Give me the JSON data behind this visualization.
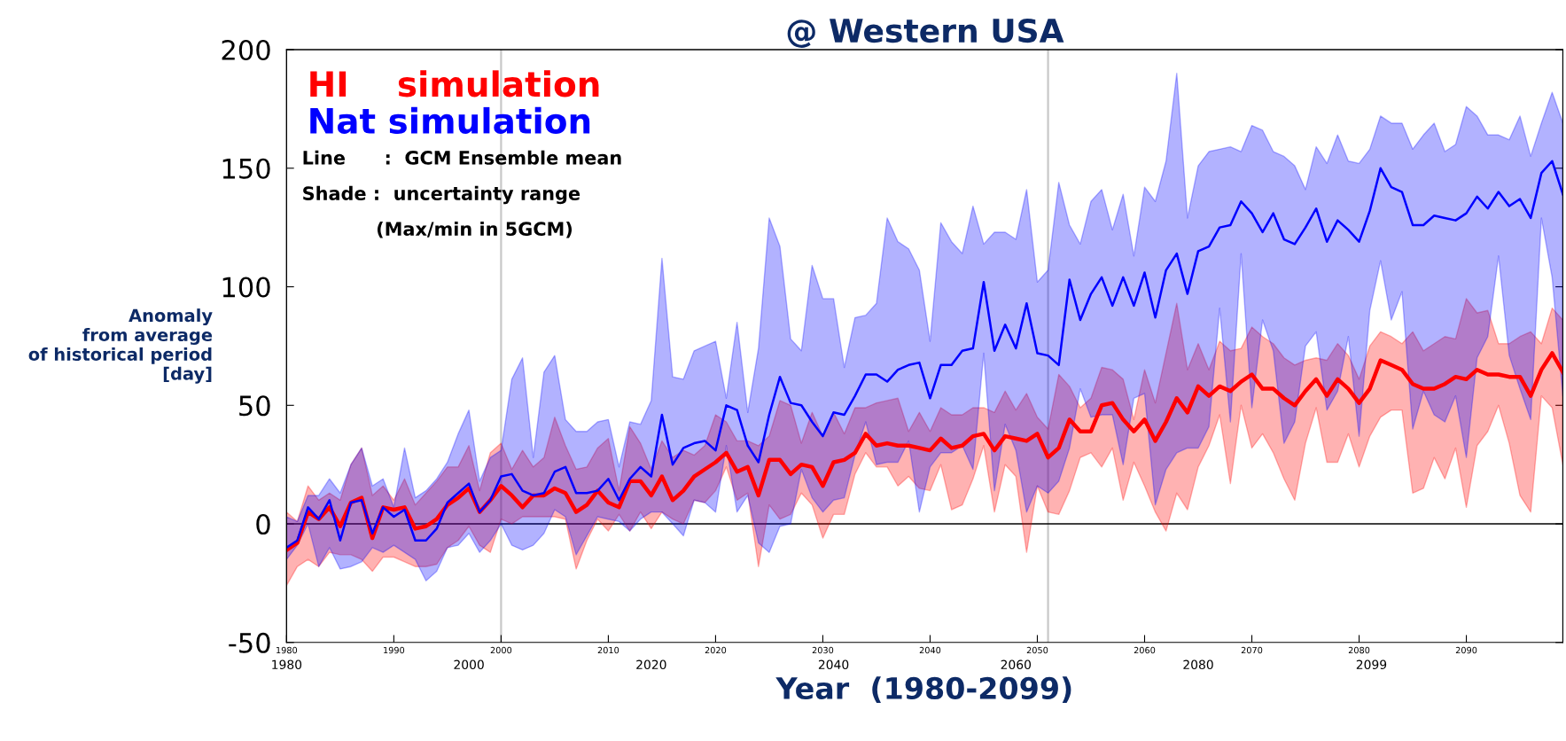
{
  "chart_data": {
    "type": "line",
    "title": "@ Western USA",
    "xlabel": "Year  (1980-2099)",
    "ylabel": "Anomaly\nfrom average\nof historical period\n[day]",
    "annotations": [
      "Line      :  GCM Ensemble mean",
      "Shade :  uncertainty range",
      "(Max/min in 5GCM)"
    ],
    "x": [
      1980,
      1981,
      1982,
      1983,
      1984,
      1985,
      1986,
      1987,
      1988,
      1989,
      1990,
      1991,
      1992,
      1993,
      1994,
      1995,
      1996,
      1997,
      1998,
      1999,
      2000,
      2001,
      2002,
      2003,
      2004,
      2005,
      2006,
      2007,
      2008,
      2009,
      2010,
      2011,
      2012,
      2013,
      2014,
      2015,
      2016,
      2017,
      2018,
      2019,
      2020,
      2021,
      2022,
      2023,
      2024,
      2025,
      2026,
      2027,
      2028,
      2029,
      2030,
      2031,
      2032,
      2033,
      2034,
      2035,
      2036,
      2037,
      2038,
      2039,
      2040,
      2041,
      2042,
      2043,
      2044,
      2045,
      2046,
      2047,
      2048,
      2049,
      2050,
      2051,
      2052,
      2053,
      2054,
      2055,
      2056,
      2057,
      2058,
      2059,
      2060,
      2061,
      2062,
      2063,
      2064,
      2065,
      2066,
      2067,
      2068,
      2069,
      2070,
      2071,
      2072,
      2073,
      2074,
      2075,
      2076,
      2077,
      2078,
      2079,
      2080,
      2081,
      2082,
      2083,
      2084,
      2085,
      2086,
      2087,
      2088,
      2089,
      2090,
      2091,
      2092,
      2093,
      2094,
      2095,
      2096,
      2097,
      2098,
      2099
    ],
    "series": [
      {
        "name": "Nat simulation",
        "color": "#0000ff",
        "values": [
          -10,
          -7,
          7,
          2,
          10,
          -7,
          9,
          10,
          -4,
          7,
          3,
          6,
          -7,
          -7,
          -2,
          9,
          13,
          17,
          5,
          10,
          20,
          21,
          14,
          12,
          13,
          22,
          24,
          13,
          13,
          14,
          19,
          10,
          19,
          24,
          20,
          46,
          25,
          32,
          34,
          35,
          31,
          50,
          48,
          33,
          26,
          46,
          62,
          51,
          50,
          43,
          37,
          47,
          46,
          54,
          63,
          63,
          60,
          65,
          67,
          68,
          53,
          67,
          67,
          73,
          74,
          102,
          73,
          84,
          74,
          93,
          72,
          71,
          67,
          103,
          86,
          97,
          104,
          92,
          104,
          92,
          106,
          87,
          107,
          114,
          97,
          115,
          117,
          125,
          126,
          136,
          131,
          123,
          131,
          120,
          118,
          125,
          133,
          119,
          128,
          124,
          119,
          132,
          150,
          142,
          140,
          126,
          126,
          130,
          129,
          128,
          131,
          138,
          133,
          140,
          134,
          137,
          129,
          148,
          153,
          139
        ],
        "upper": [
          3,
          1,
          12,
          12,
          19,
          13,
          25,
          32,
          16,
          19,
          7,
          32,
          11,
          14,
          19,
          26,
          38,
          48,
          18,
          28,
          31,
          61,
          70,
          28,
          64,
          71,
          44,
          39,
          39,
          43,
          44,
          24,
          43,
          42,
          52,
          112,
          62,
          61,
          73,
          75,
          77,
          53,
          85,
          47,
          74,
          129,
          117,
          78,
          73,
          109,
          95,
          95,
          66,
          87,
          88,
          93,
          129,
          119,
          116,
          107,
          77,
          127,
          119,
          114,
          134,
          118,
          123,
          123,
          120,
          141,
          102,
          107,
          144,
          126,
          118,
          136,
          141,
          124,
          139,
          113,
          142,
          136,
          153,
          190,
          129,
          151,
          157,
          158,
          159,
          157,
          168,
          166,
          157,
          155,
          151,
          141,
          159,
          152,
          164,
          153,
          152,
          158,
          172,
          169,
          169,
          158,
          164,
          169,
          157,
          160,
          176,
          172,
          164,
          164,
          162,
          172,
          155,
          169,
          182,
          169
        ],
        "lower": [
          -15,
          -9,
          0,
          -18,
          -10,
          -19,
          -18,
          -16,
          -10,
          -12,
          -9,
          -12,
          -15,
          -24,
          -20,
          -10,
          -9,
          -4,
          -12,
          -7,
          0,
          -9,
          -11,
          -9,
          -4,
          6,
          3,
          -13,
          -5,
          3,
          2,
          1,
          -3,
          2,
          5,
          5,
          0,
          -5,
          10,
          9,
          5,
          33,
          5,
          12,
          -8,
          -12,
          -1,
          0,
          23,
          11,
          5,
          10,
          11,
          29,
          43,
          25,
          26,
          26,
          35,
          5,
          24,
          30,
          30,
          33,
          23,
          72,
          14,
          42,
          31,
          5,
          16,
          13,
          18,
          32,
          57,
          45,
          46,
          46,
          25,
          53,
          55,
          8,
          23,
          30,
          32,
          32,
          41,
          91,
          43,
          114,
          49,
          86,
          73,
          34,
          43,
          75,
          81,
          48,
          56,
          79,
          37,
          90,
          111,
          86,
          98,
          40,
          56,
          46,
          43,
          54,
          28,
          70,
          79,
          113,
          71,
          57,
          44,
          129,
          104,
          54
        ]
      },
      {
        "name": "HI    simulation",
        "color": "#ff0000",
        "values": [
          -11,
          -8,
          5,
          2,
          7,
          -1,
          9,
          11,
          -6,
          7,
          6,
          7,
          -2,
          -1,
          2,
          8,
          11,
          15,
          5,
          10,
          16,
          12,
          7,
          12,
          12,
          15,
          13,
          5,
          8,
          14,
          9,
          7,
          18,
          18,
          12,
          20,
          10,
          14,
          20,
          23,
          26,
          30,
          22,
          24,
          12,
          27,
          27,
          21,
          25,
          24,
          16,
          26,
          27,
          30,
          38,
          33,
          34,
          33,
          33,
          32,
          31,
          36,
          32,
          33,
          37,
          38,
          31,
          37,
          36,
          35,
          38,
          28,
          32,
          44,
          39,
          39,
          50,
          51,
          44,
          39,
          44,
          35,
          43,
          53,
          47,
          58,
          54,
          58,
          56,
          60,
          63,
          57,
          57,
          53,
          50,
          56,
          61,
          54,
          61,
          57,
          51,
          57,
          69,
          67,
          65,
          59,
          57,
          57,
          59,
          62,
          61,
          65,
          63,
          63,
          62,
          62,
          54,
          65,
          72,
          64
        ],
        "upper": [
          5,
          1,
          16,
          10,
          13,
          10,
          25,
          32,
          12,
          16,
          10,
          19,
          8,
          13,
          18,
          24,
          24,
          33,
          14,
          30,
          34,
          23,
          31,
          24,
          28,
          45,
          33,
          23,
          24,
          32,
          36,
          14,
          41,
          34,
          23,
          35,
          28,
          31,
          29,
          33,
          46,
          43,
          35,
          35,
          33,
          37,
          52,
          50,
          34,
          47,
          37,
          47,
          38,
          49,
          49,
          51,
          52,
          53,
          39,
          47,
          39,
          49,
          46,
          46,
          49,
          49,
          47,
          56,
          48,
          55,
          45,
          40,
          63,
          58,
          49,
          53,
          66,
          65,
          61,
          44,
          65,
          51,
          72,
          93,
          65,
          76,
          65,
          77,
          73,
          74,
          83,
          79,
          76,
          70,
          67,
          69,
          70,
          69,
          76,
          71,
          61,
          75,
          81,
          79,
          76,
          81,
          73,
          76,
          79,
          78,
          95,
          89,
          90,
          76,
          76,
          79,
          81,
          76,
          91,
          86
        ],
        "lower": [
          -26,
          -18,
          -15,
          -18,
          -12,
          -13,
          -13,
          -15,
          -20,
          -14,
          -14,
          -16,
          -18,
          -18,
          -17,
          -10,
          -7,
          -1,
          -9,
          -12,
          2,
          0,
          3,
          3,
          3,
          3,
          2,
          -19,
          -7,
          2,
          -3,
          4,
          -3,
          5,
          -2,
          5,
          2,
          0,
          10,
          9,
          14,
          24,
          10,
          13,
          -18,
          8,
          2,
          4,
          13,
          8,
          -6,
          4,
          4,
          21,
          30,
          24,
          24,
          16,
          20,
          15,
          14,
          25,
          6,
          8,
          19,
          33,
          5,
          25,
          20,
          -12,
          16,
          5,
          4,
          14,
          28,
          30,
          24,
          32,
          10,
          26,
          16,
          5,
          -3,
          13,
          6,
          24,
          33,
          46,
          17,
          50,
          32,
          38,
          30,
          19,
          10,
          34,
          49,
          26,
          26,
          38,
          24,
          37,
          45,
          48,
          48,
          13,
          15,
          28,
          19,
          32,
          7,
          33,
          39,
          50,
          34,
          12,
          5,
          54,
          49,
          25
        ]
      }
    ],
    "xlim": [
      1980,
      2099
    ],
    "xticks": [
      1980,
      1990,
      2000,
      2010,
      2020,
      2030,
      2040,
      2050,
      2060,
      2070,
      2080,
      2090
    ],
    "x2lim": [
      1980,
      2120
    ],
    "x2ticks": [
      1980,
      2000,
      2020,
      2040,
      2060,
      2080,
      2099
    ],
    "ylim": [
      -50,
      200
    ],
    "yticks": [
      -50,
      0,
      50,
      100,
      150,
      200
    ],
    "ref_lines": [
      {
        "axis": "x",
        "value": 2000,
        "color": "#c8c8c8"
      },
      {
        "axis": "x",
        "value": 2051,
        "color": "#c8c8c8"
      },
      {
        "axis": "y",
        "value": 0,
        "color": "#000000"
      }
    ],
    "legend": "top left",
    "grid": false,
    "marker": "none",
    "line_style": "solid"
  }
}
